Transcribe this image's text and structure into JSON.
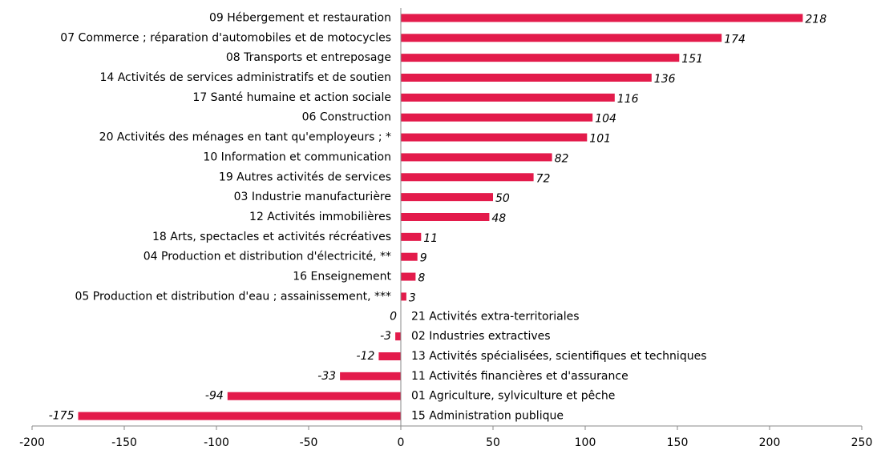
{
  "chart_data": {
    "type": "hbar",
    "categories": [
      "09 Hébergement et restauration",
      "07 Commerce ; réparation d'automobiles et de motocycles",
      "08 Transports et entreposage",
      "14 Activités de services administratifs et de soutien",
      "17 Santé humaine et action sociale",
      "06 Construction",
      "20 Activités des ménages en tant qu'employeurs ; *",
      "10 Information et communication",
      "19 Autres activités de services",
      "03 Industrie manufacturière",
      "12 Activités immobilières",
      "18 Arts, spectacles et activités récréatives",
      "04 Production et distribution d'électricité, **",
      "16 Enseignement",
      "05 Production et distribution d'eau ; assainissement, ***",
      "21 Activités extra-territoriales",
      "02 Industries extractives",
      "13 Activités spécialisées, scientifiques et techniques",
      "11 Activités financières et d'assurance",
      "01 Agriculture, sylviculture et pêche",
      "15 Administration publique"
    ],
    "values": [
      218,
      174,
      151,
      136,
      116,
      104,
      101,
      82,
      72,
      50,
      48,
      11,
      9,
      8,
      3,
      0,
      -3,
      -12,
      -33,
      -94,
      -175
    ],
    "color": "#e31b4b",
    "xlim": [
      -200,
      250
    ],
    "xticks": [
      -200,
      -150,
      -100,
      -50,
      0,
      50,
      100,
      150,
      200,
      250
    ]
  }
}
